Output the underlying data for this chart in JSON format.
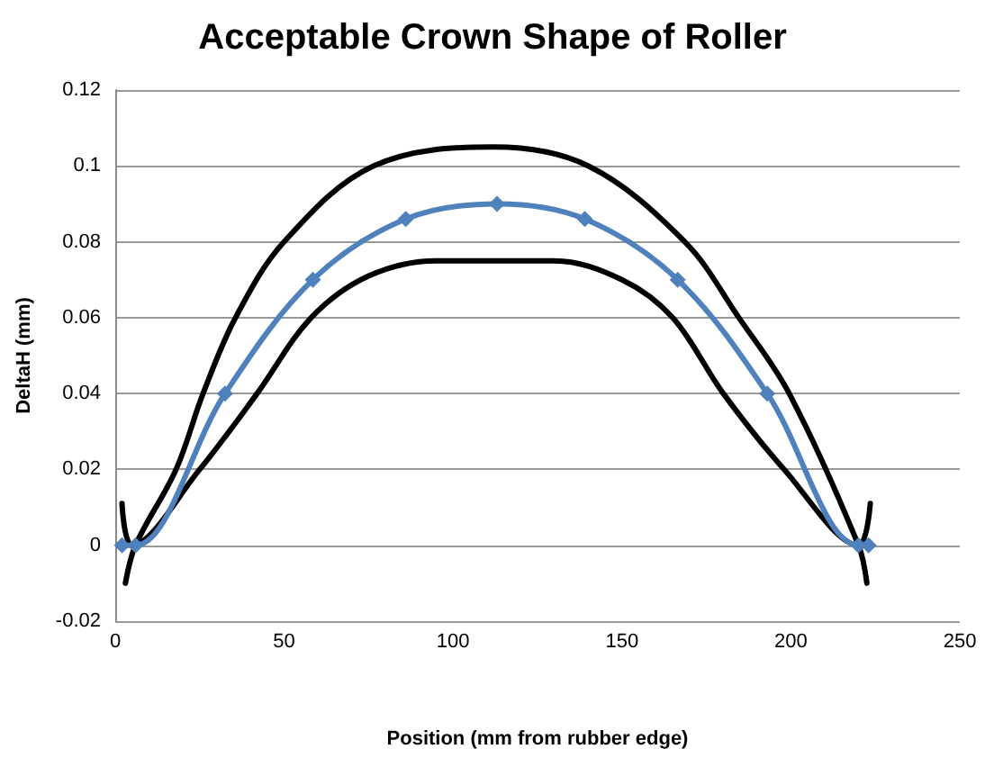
{
  "chart_data": {
    "type": "line",
    "title": "Acceptable Crown Shape of Roller",
    "xlabel": "Position (mm from rubber edge)",
    "ylabel": "DeltaH (mm)",
    "xlim": [
      0,
      250
    ],
    "xticks": [
      0,
      50,
      100,
      150,
      200,
      250
    ],
    "ylim": [
      -0.02,
      0.12
    ],
    "yticks": [
      -0.02,
      0,
      0.02,
      0.04,
      0.06,
      0.08,
      0.1,
      0.12
    ],
    "grid": "y",
    "line_style": "solid",
    "series": [
      {
        "color": "#000000",
        "marker": "none",
        "x": [
          3,
          6,
          18,
          26,
          35.6,
          50,
          76.5,
          112,
          140,
          168.6,
          184.6,
          199.5,
          220,
          222.5
        ],
        "values": [
          -0.01,
          0,
          0.02,
          0.04,
          0.06,
          0.08,
          0.1,
          0.105,
          0.1,
          0.08,
          0.06,
          0.04,
          0,
          -0.01
        ]
      },
      {
        "color": "#000000",
        "marker": "none",
        "x": [
          2,
          5,
          25,
          42,
          58,
          75,
          95,
          112,
          130,
          150,
          165,
          180,
          198,
          220,
          223.5
        ],
        "values": [
          0.011,
          0,
          0.02,
          0.04,
          0.06,
          0.071,
          0.075,
          0.075,
          0.075,
          0.07,
          0.06,
          0.04,
          0.02,
          0,
          0.011
        ]
      },
      {
        "color": "#4f81bd",
        "marker": "diamond",
        "x": [
          2,
          6,
          32.5,
          58.5,
          86,
          113,
          139,
          166.5,
          193,
          220,
          223
        ],
        "values": [
          0,
          0,
          0.04,
          0.07,
          0.086,
          0.09,
          0.086,
          0.07,
          0.04,
          0,
          0
        ]
      }
    ]
  }
}
